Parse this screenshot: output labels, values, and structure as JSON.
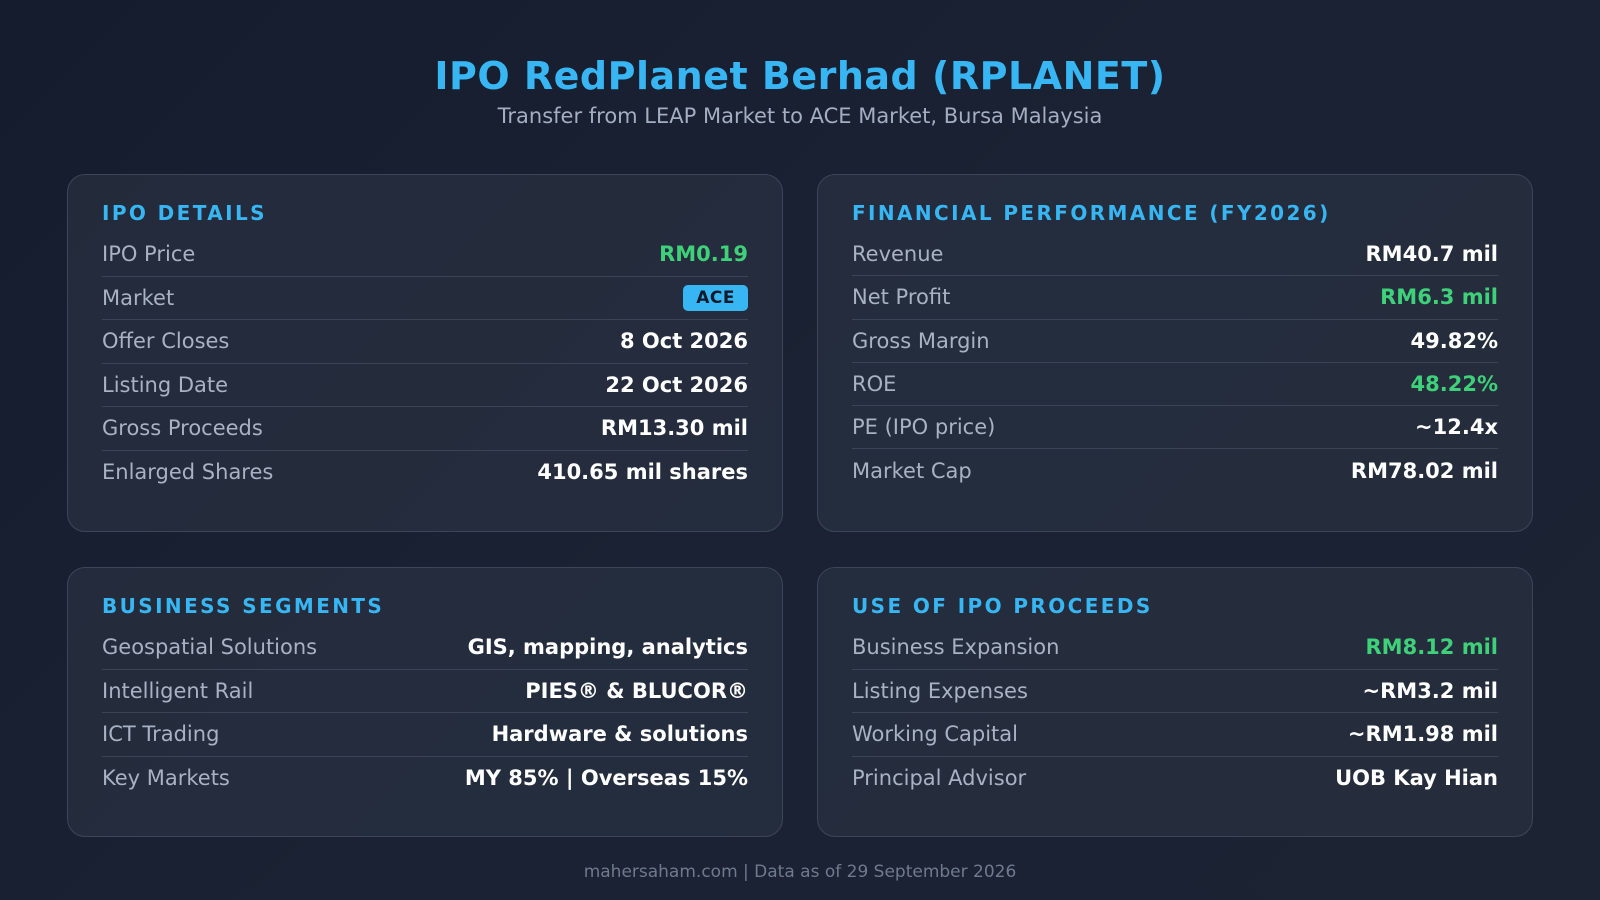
{
  "header": {
    "title": "IPO RedPlanet Berhad (RPLANET)",
    "subtitle": "Transfer from LEAP Market to ACE Market, Bursa Malaysia"
  },
  "ipo_details": {
    "title": "IPO DETAILS",
    "rows": [
      {
        "label": "IPO Price",
        "value": "RM0.19",
        "style": "green"
      },
      {
        "label": "Market",
        "value": "ACE",
        "style": "badge"
      },
      {
        "label": "Offer Closes",
        "value": "8 Oct 2026",
        "style": "white"
      },
      {
        "label": "Listing Date",
        "value": "22 Oct 2026",
        "style": "white"
      },
      {
        "label": "Gross Proceeds",
        "value": "RM13.30 mil",
        "style": "white"
      },
      {
        "label": "Enlarged Shares",
        "value": "410.65 mil shares",
        "style": "white"
      }
    ]
  },
  "financial": {
    "title": "FINANCIAL PERFORMANCE (FY2026)",
    "rows": [
      {
        "label": "Revenue",
        "value": "RM40.7 mil",
        "style": "white"
      },
      {
        "label": "Net Profit",
        "value": "RM6.3 mil",
        "style": "green"
      },
      {
        "label": "Gross Margin",
        "value": "49.82%",
        "style": "white"
      },
      {
        "label": "ROE",
        "value": "48.22%",
        "style": "green"
      },
      {
        "label": "PE (IPO price)",
        "value": "~12.4x",
        "style": "white"
      },
      {
        "label": "Market Cap",
        "value": "RM78.02 mil",
        "style": "white"
      }
    ]
  },
  "business": {
    "title": "BUSINESS SEGMENTS",
    "rows": [
      {
        "label": "Geospatial Solutions",
        "value": "GIS, mapping, analytics",
        "style": "white"
      },
      {
        "label": "Intelligent Rail",
        "value": "PIES® & BLUCOR®",
        "style": "white"
      },
      {
        "label": "ICT Trading",
        "value": "Hardware & solutions",
        "style": "white"
      },
      {
        "label": "Key Markets",
        "value": "MY 85% | Overseas 15%",
        "style": "white"
      }
    ]
  },
  "proceeds": {
    "title": "USE OF IPO PROCEEDS",
    "rows": [
      {
        "label": "Business Expansion",
        "value": "RM8.12 mil",
        "style": "green"
      },
      {
        "label": "Listing Expenses",
        "value": "~RM3.2 mil",
        "style": "white"
      },
      {
        "label": "Working Capital",
        "value": "~RM1.98 mil",
        "style": "white"
      },
      {
        "label": "Principal Advisor",
        "value": "UOB Kay Hian",
        "style": "white"
      }
    ]
  },
  "footer": {
    "text": "mahersaham.com | Data as of 29 September 2026"
  },
  "colors": {
    "accent": "#38b6f4",
    "positive": "#3fd17a",
    "background": "#141c2e"
  }
}
